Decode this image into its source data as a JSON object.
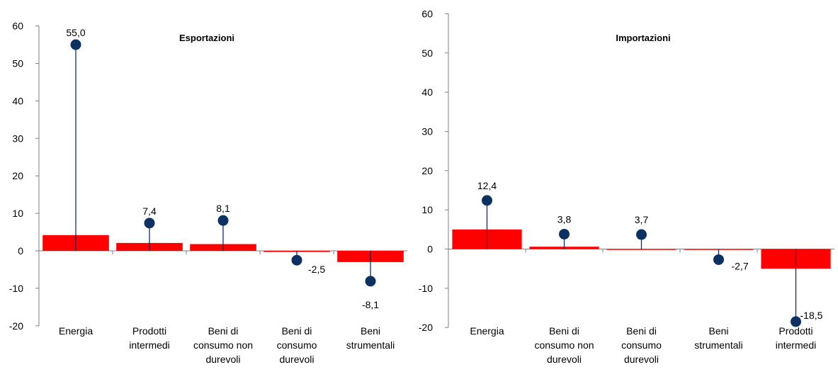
{
  "colors": {
    "bar": "#ff0000",
    "point": "#0d3160",
    "stem": "#0d3160",
    "axis": "#808080"
  },
  "chart_data": [
    {
      "type": "bar",
      "title": "Esportazioni",
      "categories": [
        "Energia",
        "Prodotti intermedi",
        "Beni di consumo non durevoli",
        "Beni di consumo durevoli",
        "Beni strumentali"
      ],
      "category_lines": [
        [
          "Energia"
        ],
        [
          "Prodotti",
          "intermedi"
        ],
        [
          "Beni di",
          "consumo non",
          "durevoli"
        ],
        [
          "Beni di",
          "consumo",
          "durevoli"
        ],
        [
          "Beni",
          "strumentali"
        ]
      ],
      "series": [
        {
          "values": [
            4.2,
            2.1,
            1.8,
            -0.3,
            -3.0
          ]
        },
        {
          "values": [
            55.0,
            7.4,
            8.1,
            -2.5,
            -8.1
          ]
        }
      ],
      "data_labels": [
        "55,0",
        "7,4",
        "8,1",
        "-2,5",
        "-8,1"
      ],
      "ylim": [
        -20,
        60
      ],
      "yticks": [
        "-20",
        "-10",
        "0",
        "10",
        "20",
        "30",
        "40",
        "50",
        "60"
      ],
      "grid": false
    },
    {
      "type": "bar",
      "title": "Importazioni",
      "categories": [
        "Energia",
        "Beni di consumo non durevoli",
        "Beni di consumo durevoli",
        "Beni strumentali",
        "Prodotti intermedi"
      ],
      "category_lines": [
        [
          "Energia"
        ],
        [
          "Beni di",
          "consumo non",
          "durevoli"
        ],
        [
          "Beni di",
          "consumo",
          "durevoli"
        ],
        [
          "Beni",
          "strumentali"
        ],
        [
          "Prodotti",
          "intermedi"
        ]
      ],
      "series": [
        {
          "values": [
            5.0,
            0.6,
            0.0,
            -0.2,
            -5.0
          ]
        },
        {
          "values": [
            12.4,
            3.8,
            3.7,
            -2.7,
            -18.5
          ]
        }
      ],
      "data_labels": [
        "12,4",
        "3,8",
        "3,7",
        "-2,7",
        "-18,5"
      ],
      "ylim": [
        -20,
        60
      ],
      "yticks": [
        "-20",
        "-10",
        "0",
        "10",
        "20",
        "30",
        "40",
        "50",
        "60"
      ],
      "grid": false
    }
  ]
}
